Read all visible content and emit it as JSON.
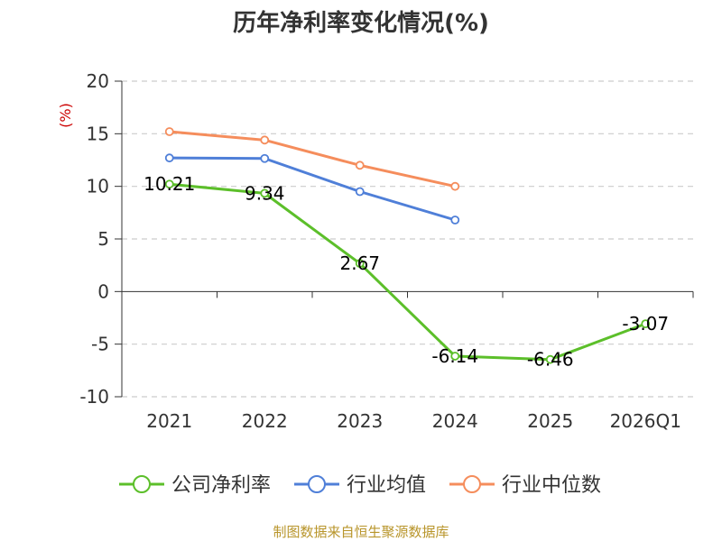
{
  "chart_data": {
    "type": "line",
    "title": "历年净利率变化情况(%)",
    "ylabel": "(%)",
    "categories": [
      "2021",
      "2022",
      "2023",
      "2024",
      "2025",
      "2026Q1"
    ],
    "ylim": [
      -10,
      20
    ],
    "yticks": [
      -10,
      -5,
      0,
      5,
      10,
      15,
      20
    ],
    "grid": true,
    "legend": "bottom",
    "series": [
      {
        "name": "公司净利率",
        "color": "#5cbf2a",
        "values": [
          10.21,
          9.34,
          2.67,
          -6.14,
          -6.46,
          -3.07
        ],
        "labels": [
          "10.21",
          "9.34",
          "2.67",
          "-6.14",
          "-6.46",
          "-3.07"
        ]
      },
      {
        "name": "行业均值",
        "color": "#4f7fd8",
        "values": [
          12.7,
          12.65,
          9.5,
          6.8,
          null,
          null
        ]
      },
      {
        "name": "行业中位数",
        "color": "#f58d5c",
        "values": [
          15.2,
          14.4,
          12.0,
          10.0,
          null,
          null
        ]
      }
    ]
  },
  "source": "制图数据来自恒生聚源数据库"
}
